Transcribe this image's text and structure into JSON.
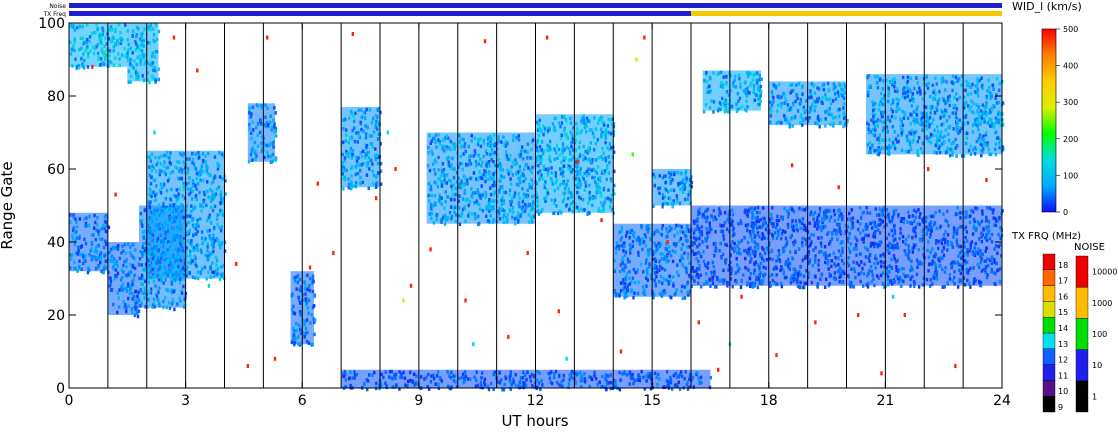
{
  "chart_data": {
    "type": "heatmap",
    "title": "",
    "xlabel": "UT hours",
    "ylabel": "Range Gate",
    "xlim": [
      0,
      24
    ],
    "ylim": [
      0,
      100
    ],
    "x_ticks": [
      "0",
      "3",
      "6",
      "9",
      "12",
      "15",
      "18",
      "21",
      "24"
    ],
    "y_ticks": [
      "0",
      "20",
      "40",
      "60",
      "80",
      "100"
    ],
    "scan_boundaries_hours": [
      1,
      2,
      3,
      4,
      5,
      6,
      7,
      8,
      9,
      10,
      11,
      12,
      13,
      14,
      15,
      16,
      17,
      18,
      19,
      20,
      21,
      22,
      23
    ],
    "top_strips": [
      {
        "name": "Noise",
        "segments": [
          {
            "from": 0,
            "to": 24,
            "color": "#1f1fd0"
          }
        ]
      },
      {
        "name": "TX Freq",
        "segments": [
          {
            "from": 0,
            "to": 16,
            "color": "#1f1fd0"
          },
          {
            "from": 16,
            "to": 24,
            "color": "#f5c800"
          }
        ]
      }
    ],
    "echo_regions": [
      {
        "x": [
          0.0,
          1.0
        ],
        "y": [
          32,
          48
        ],
        "value_kms": 40
      },
      {
        "x": [
          1.0,
          1.8
        ],
        "y": [
          20,
          40
        ],
        "value_kms": 40
      },
      {
        "x": [
          1.8,
          3.0
        ],
        "y": [
          22,
          50
        ],
        "value_kms": 50
      },
      {
        "x": [
          2.0,
          4.0
        ],
        "y": [
          30,
          65
        ],
        "value_kms": 60
      },
      {
        "x": [
          4.6,
          5.3
        ],
        "y": [
          62,
          78
        ],
        "value_kms": 50
      },
      {
        "x": [
          5.7,
          6.3
        ],
        "y": [
          12,
          32
        ],
        "value_kms": 40
      },
      {
        "x": [
          7.0,
          8.0
        ],
        "y": [
          55,
          77
        ],
        "value_kms": 60
      },
      {
        "x": [
          9.2,
          12.0
        ],
        "y": [
          45,
          70
        ],
        "value_kms": 60
      },
      {
        "x": [
          12.0,
          14.0
        ],
        "y": [
          48,
          75
        ],
        "value_kms": 70
      },
      {
        "x": [
          14.0,
          16.0
        ],
        "y": [
          25,
          45
        ],
        "value_kms": 40
      },
      {
        "x": [
          15.0,
          16.0
        ],
        "y": [
          50,
          60
        ],
        "value_kms": 60
      },
      {
        "x": [
          16.0,
          24.0
        ],
        "y": [
          28,
          50
        ],
        "value_kms": 30
      },
      {
        "x": [
          16.3,
          17.8
        ],
        "y": [
          76,
          87
        ],
        "value_kms": 70
      },
      {
        "x": [
          18.0,
          20.0
        ],
        "y": [
          72,
          84
        ],
        "value_kms": 60
      },
      {
        "x": [
          20.5,
          24.0
        ],
        "y": [
          64,
          86
        ],
        "value_kms": 60
      },
      {
        "x": [
          0.0,
          1.5
        ],
        "y": [
          88,
          100
        ],
        "value_kms": 80
      },
      {
        "x": [
          1.5,
          2.3
        ],
        "y": [
          84,
          100
        ],
        "value_kms": 70
      },
      {
        "x": [
          7.0,
          16.5
        ],
        "y": [
          0,
          5
        ],
        "value_kms": 30
      }
    ],
    "scatter_points": [
      {
        "x": 0.6,
        "y": 88,
        "value_kms": 480
      },
      {
        "x": 1.2,
        "y": 53,
        "value_kms": 480
      },
      {
        "x": 2.7,
        "y": 96,
        "value_kms": 480
      },
      {
        "x": 3.3,
        "y": 87,
        "value_kms": 480
      },
      {
        "x": 4.3,
        "y": 34,
        "value_kms": 480
      },
      {
        "x": 4.6,
        "y": 6,
        "value_kms": 480
      },
      {
        "x": 5.1,
        "y": 96,
        "value_kms": 480
      },
      {
        "x": 5.3,
        "y": 8,
        "value_kms": 480
      },
      {
        "x": 6.2,
        "y": 33,
        "value_kms": 480
      },
      {
        "x": 6.4,
        "y": 56,
        "value_kms": 480
      },
      {
        "x": 6.8,
        "y": 37,
        "value_kms": 480
      },
      {
        "x": 7.3,
        "y": 97,
        "value_kms": 480
      },
      {
        "x": 7.9,
        "y": 52,
        "value_kms": 480
      },
      {
        "x": 8.4,
        "y": 60,
        "value_kms": 480
      },
      {
        "x": 8.8,
        "y": 28,
        "value_kms": 480
      },
      {
        "x": 9.3,
        "y": 38,
        "value_kms": 480
      },
      {
        "x": 10.2,
        "y": 24,
        "value_kms": 480
      },
      {
        "x": 10.7,
        "y": 95,
        "value_kms": 480
      },
      {
        "x": 11.3,
        "y": 14,
        "value_kms": 480
      },
      {
        "x": 11.8,
        "y": 37,
        "value_kms": 480
      },
      {
        "x": 12.3,
        "y": 96,
        "value_kms": 480
      },
      {
        "x": 12.6,
        "y": 21,
        "value_kms": 480
      },
      {
        "x": 13.1,
        "y": 62,
        "value_kms": 480
      },
      {
        "x": 13.7,
        "y": 46,
        "value_kms": 480
      },
      {
        "x": 14.2,
        "y": 10,
        "value_kms": 480
      },
      {
        "x": 14.8,
        "y": 96,
        "value_kms": 480
      },
      {
        "x": 15.4,
        "y": 40,
        "value_kms": 480
      },
      {
        "x": 16.2,
        "y": 18,
        "value_kms": 480
      },
      {
        "x": 16.7,
        "y": 5,
        "value_kms": 480
      },
      {
        "x": 17.3,
        "y": 25,
        "value_kms": 480
      },
      {
        "x": 18.2,
        "y": 9,
        "value_kms": 480
      },
      {
        "x": 18.6,
        "y": 61,
        "value_kms": 480
      },
      {
        "x": 19.2,
        "y": 18,
        "value_kms": 480
      },
      {
        "x": 19.8,
        "y": 55,
        "value_kms": 480
      },
      {
        "x": 20.3,
        "y": 20,
        "value_kms": 480
      },
      {
        "x": 20.9,
        "y": 4,
        "value_kms": 480
      },
      {
        "x": 21.5,
        "y": 20,
        "value_kms": 480
      },
      {
        "x": 22.1,
        "y": 60,
        "value_kms": 480
      },
      {
        "x": 22.8,
        "y": 6,
        "value_kms": 480
      },
      {
        "x": 23.6,
        "y": 57,
        "value_kms": 480
      },
      {
        "x": 2.2,
        "y": 70,
        "value_kms": 140
      },
      {
        "x": 3.6,
        "y": 28,
        "value_kms": 140
      },
      {
        "x": 8.2,
        "y": 70,
        "value_kms": 140
      },
      {
        "x": 10.4,
        "y": 12,
        "value_kms": 140
      },
      {
        "x": 12.8,
        "y": 8,
        "value_kms": 140
      },
      {
        "x": 17.0,
        "y": 12,
        "value_kms": 140
      },
      {
        "x": 21.2,
        "y": 25,
        "value_kms": 140
      },
      {
        "x": 14.5,
        "y": 64,
        "value_kms": 230
      },
      {
        "x": 8.6,
        "y": 24,
        "value_kms": 310
      },
      {
        "x": 14.6,
        "y": 90,
        "value_kms": 310
      }
    ],
    "colorbars": [
      {
        "label": "WID_l (km/s)",
        "range": [
          0,
          500
        ],
        "ticks": [
          "0",
          "100",
          "200",
          "300",
          "400",
          "500"
        ],
        "stops": [
          "#1010ff",
          "#00aaff",
          "#00dddd",
          "#00ff00",
          "#ddee00",
          "#ffcc00",
          "#ff8000",
          "#ff0000"
        ]
      },
      {
        "label": "TX FRQ (MHz)",
        "ticks": [
          "9",
          "10",
          "11",
          "12",
          "13",
          "14",
          "15",
          "16",
          "17",
          "18"
        ],
        "colors": [
          "#000000",
          "#551188",
          "#2020ee",
          "#1060ff",
          "#00e0ee",
          "#00dd00",
          "#dddd00",
          "#ffbb00",
          "#ff6600",
          "#ee0000"
        ]
      },
      {
        "label": "NOISE",
        "ticks": [
          "1",
          "10",
          "100",
          "1000",
          "10000"
        ],
        "colors": [
          "#000000",
          "#2020ee",
          "#00dd00",
          "#ffbb00",
          "#ee0000"
        ]
      }
    ]
  }
}
